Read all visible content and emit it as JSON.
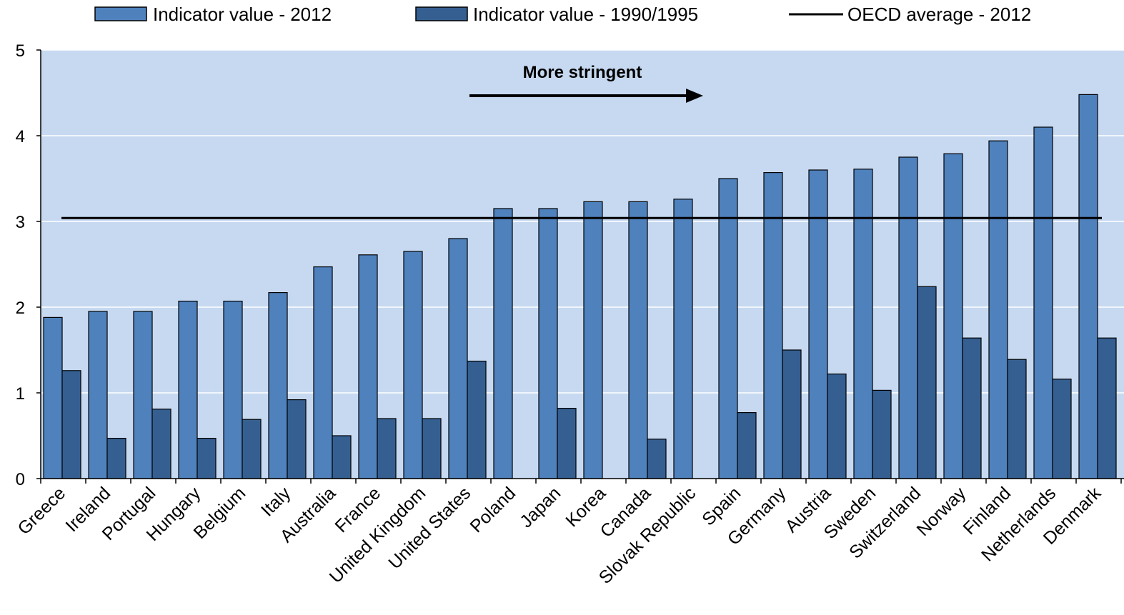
{
  "chart_data": {
    "type": "bar",
    "categories": [
      "Greece",
      "Ireland",
      "Portugal",
      "Hungary",
      "Belgium",
      "Italy",
      "Australia",
      "France",
      "United Kingdom",
      "United States",
      "Poland",
      "Japan",
      "Korea",
      "Canada",
      "Slovak Republic",
      "Spain",
      "Germany",
      "Austria",
      "Sweden",
      "Switzerland",
      "Norway",
      "Finland",
      "Netherlands",
      "Denmark"
    ],
    "series": [
      {
        "name": "Indicator value - 2012",
        "color": "#4f81bd",
        "values": [
          1.88,
          1.95,
          1.95,
          2.07,
          2.07,
          2.17,
          2.47,
          2.61,
          2.65,
          2.8,
          3.15,
          3.15,
          3.23,
          3.23,
          3.26,
          3.5,
          3.57,
          3.6,
          3.61,
          3.75,
          3.79,
          3.94,
          4.1,
          4.48
        ]
      },
      {
        "name": "Indicator value - 1990/1995",
        "color": "#355f91",
        "values": [
          1.26,
          0.47,
          0.81,
          0.47,
          0.69,
          0.92,
          0.5,
          0.7,
          0.7,
          1.37,
          null,
          0.82,
          null,
          0.46,
          null,
          0.77,
          1.5,
          1.22,
          1.03,
          2.24,
          1.64,
          1.39,
          1.16,
          1.64
        ]
      }
    ],
    "reference_line": {
      "name": "OECD average - 2012",
      "value": 3.04,
      "color": "#000000"
    },
    "annotation": "More stringent",
    "xlabel": "",
    "ylabel": "",
    "ylim": [
      0,
      5
    ],
    "yticks": [
      0,
      1,
      2,
      3,
      4,
      5
    ],
    "grid": true,
    "legend_position": "top",
    "plot_background": "#c6d9f1"
  }
}
